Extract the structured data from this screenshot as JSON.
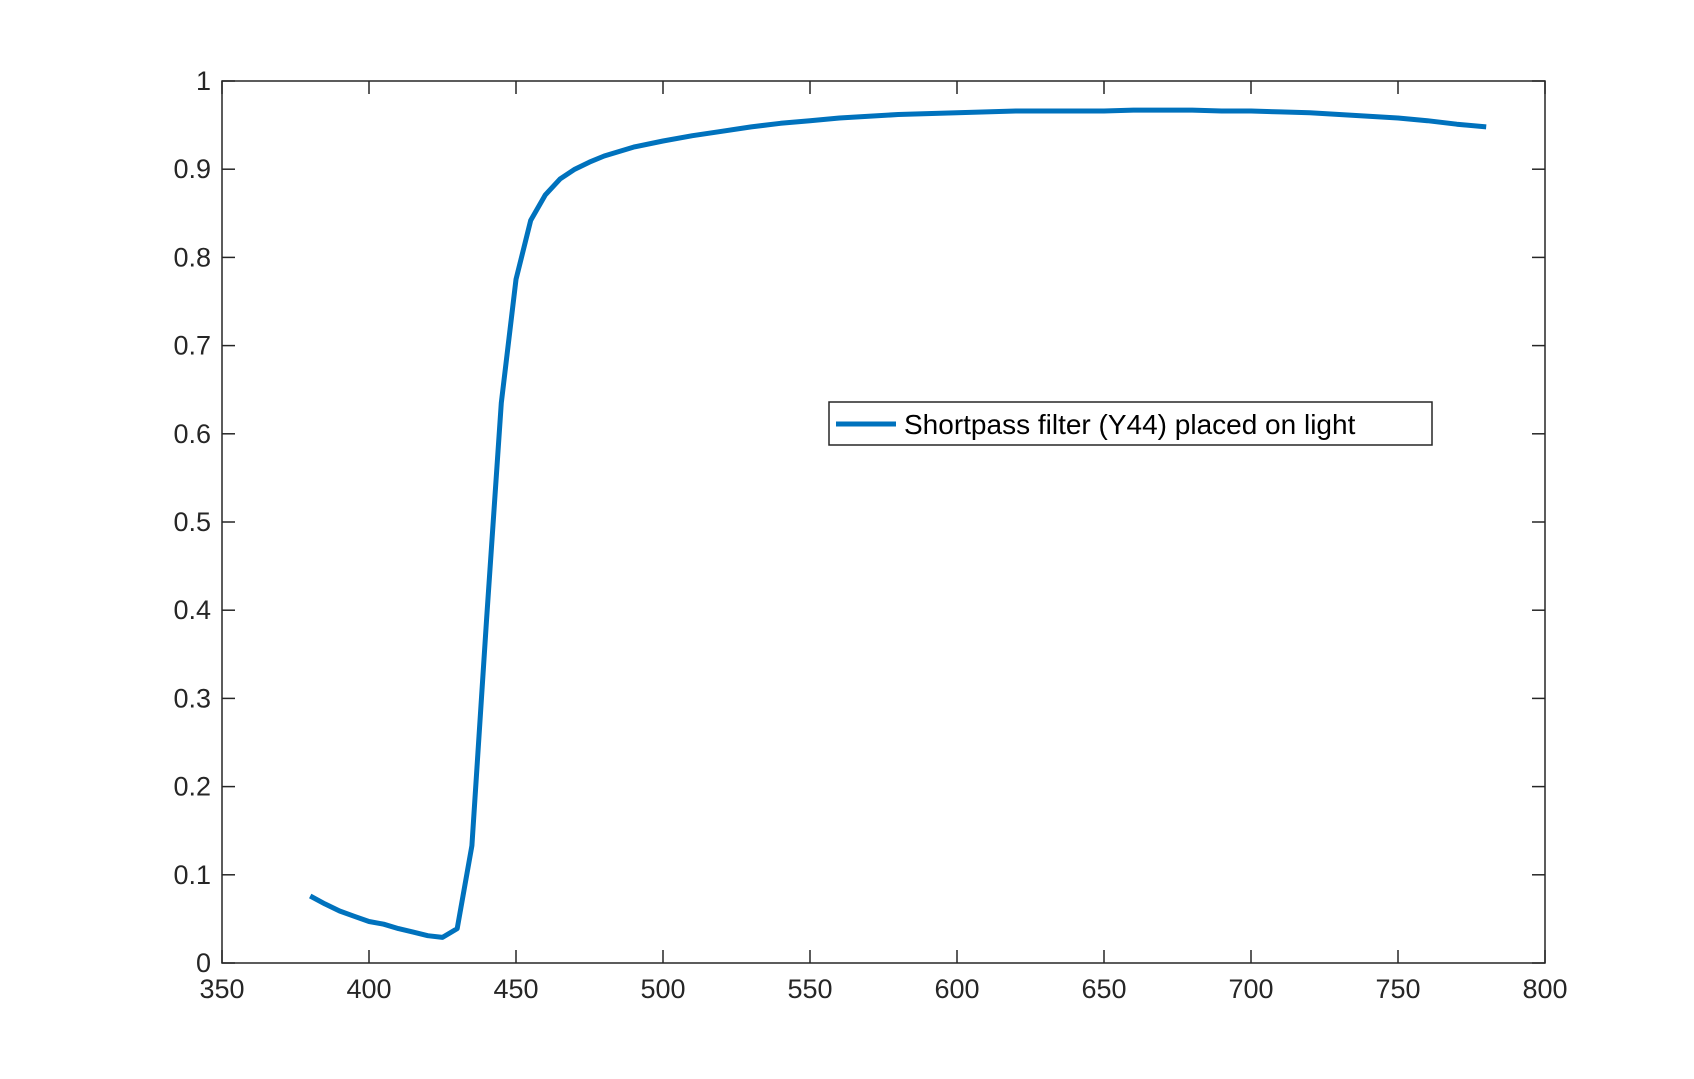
{
  "chart_data": {
    "type": "line",
    "title": "",
    "xlabel": "",
    "ylabel": "",
    "xlim": [
      350,
      800
    ],
    "ylim": [
      0,
      1
    ],
    "xticks": [
      350,
      400,
      450,
      500,
      550,
      600,
      650,
      700,
      750,
      800
    ],
    "xtick_labels": [
      "350",
      "400",
      "450",
      "500",
      "550",
      "600",
      "650",
      "700",
      "750",
      "800"
    ],
    "yticks": [
      0,
      0.1,
      0.2,
      0.3,
      0.4,
      0.5,
      0.6,
      0.7,
      0.8,
      0.9,
      1
    ],
    "ytick_labels": [
      "0",
      "0.1",
      "0.2",
      "0.3",
      "0.4",
      "0.5",
      "0.6",
      "0.7",
      "0.8",
      "0.9",
      "1"
    ],
    "grid": false,
    "legend_position": "center-right",
    "series": [
      {
        "name": "Shortpass filter (Y44) placed on light",
        "color": "#0072BD",
        "x": [
          380,
          385,
          390,
          395,
          400,
          405,
          410,
          415,
          420,
          425,
          430,
          435,
          440,
          445,
          450,
          455,
          460,
          465,
          470,
          475,
          480,
          490,
          500,
          510,
          520,
          530,
          540,
          550,
          560,
          570,
          580,
          590,
          600,
          610,
          620,
          630,
          640,
          650,
          660,
          670,
          680,
          690,
          700,
          710,
          720,
          730,
          740,
          750,
          760,
          770,
          780
        ],
        "y": [
          0.076,
          0.067,
          0.059,
          0.053,
          0.047,
          0.044,
          0.039,
          0.035,
          0.031,
          0.029,
          0.039,
          0.133,
          0.39,
          0.635,
          0.775,
          0.842,
          0.871,
          0.889,
          0.9,
          0.908,
          0.915,
          0.925,
          0.932,
          0.938,
          0.943,
          0.948,
          0.952,
          0.955,
          0.958,
          0.96,
          0.962,
          0.963,
          0.964,
          0.965,
          0.966,
          0.966,
          0.966,
          0.966,
          0.967,
          0.967,
          0.967,
          0.966,
          0.966,
          0.965,
          0.964,
          0.962,
          0.96,
          0.958,
          0.955,
          0.951,
          0.948
        ]
      }
    ]
  }
}
